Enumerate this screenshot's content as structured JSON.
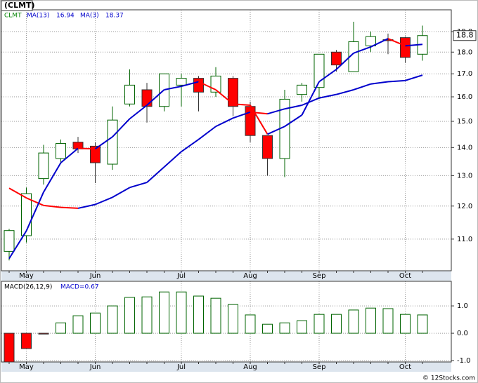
{
  "chart_data": [
    {
      "type": "candlestick",
      "title": "(CLMT)",
      "ticker": "CLMT",
      "log_scale": true,
      "grid": true,
      "categories": [
        null,
        "May",
        null,
        null,
        null,
        "Jun",
        null,
        null,
        null,
        null,
        "Jul",
        null,
        null,
        null,
        "Aug",
        null,
        null,
        null,
        "Sep",
        null,
        null,
        null,
        null,
        "Oct",
        null
      ],
      "open": [
        10.65,
        11.1,
        12.9,
        13.6,
        14.2,
        14.05,
        13.4,
        15.7,
        16.3,
        15.6,
        16.5,
        16.8,
        16.2,
        16.8,
        15.6,
        14.45,
        13.6,
        16.1,
        16.4,
        18.0,
        17.1,
        18.3,
        18.6,
        18.7,
        17.9
      ],
      "high": [
        11.3,
        12.6,
        14.1,
        14.3,
        14.4,
        14.2,
        15.6,
        17.2,
        16.6,
        17.0,
        17.0,
        16.9,
        17.3,
        16.9,
        15.8,
        14.45,
        16.3,
        16.6,
        17.9,
        18.1,
        19.5,
        19.0,
        18.9,
        18.75,
        19.3
      ],
      "low": [
        10.4,
        10.9,
        12.7,
        13.4,
        13.8,
        12.75,
        13.2,
        15.6,
        14.95,
        15.4,
        15.6,
        15.4,
        16.0,
        15.2,
        14.2,
        13.0,
        12.95,
        15.8,
        15.9,
        17.1,
        17.1,
        18.0,
        17.9,
        17.5,
        17.6
      ],
      "close": [
        11.25,
        12.4,
        13.8,
        14.15,
        13.95,
        13.45,
        15.05,
        16.5,
        15.6,
        17.0,
        16.8,
        16.2,
        16.9,
        15.6,
        14.45,
        13.6,
        15.9,
        16.5,
        17.9,
        17.4,
        18.5,
        18.75,
        18.55,
        17.75,
        18.8
      ],
      "up_color": "#006400",
      "down_color": "#ff0000",
      "ma_up_color": "#0000cc",
      "ma_down_color": "#ff0000",
      "series": [
        {
          "name": "MA(13)",
          "last": 16.94,
          "values": [
            12.58,
            12.26,
            12.02,
            11.96,
            11.93,
            12.05,
            12.28,
            12.6,
            12.77,
            13.3,
            13.85,
            14.3,
            14.8,
            15.13,
            15.37,
            15.3,
            15.5,
            15.65,
            15.95,
            16.1,
            16.3,
            16.55,
            16.65,
            16.7,
            16.94
          ]
        },
        {
          "name": "MA(3)",
          "last": 18.37,
          "values": [
            10.45,
            11.24,
            12.45,
            13.45,
            13.97,
            13.95,
            14.4,
            15.1,
            15.65,
            16.3,
            16.45,
            16.65,
            16.3,
            15.7,
            15.65,
            14.5,
            14.8,
            15.25,
            16.65,
            17.2,
            17.95,
            18.25,
            18.65,
            18.3,
            18.37
          ]
        }
      ],
      "ylim": [
        10.12,
        20.12
      ],
      "yticks": [
        {
          "value": 11,
          "label": "11.0"
        },
        {
          "value": 12,
          "label": "12.0"
        },
        {
          "value": 13,
          "label": "13.0"
        },
        {
          "value": 14,
          "label": "14.0"
        },
        {
          "value": 15,
          "label": "15.0"
        },
        {
          "value": 16,
          "label": "16.0"
        },
        {
          "value": 17,
          "label": "17.0"
        },
        {
          "value": 18,
          "label": "18.0"
        },
        {
          "value": 19,
          "label": "19.0"
        }
      ]
    },
    {
      "type": "bar",
      "name": "MACD(26,12,9)",
      "value_label": "MACD=0.67",
      "grid": true,
      "pos_color": "#006400",
      "neg_color": "#ff0000",
      "values": [
        -1.05,
        -0.56,
        -0.03,
        0.38,
        0.64,
        0.74,
        1.0,
        1.31,
        1.33,
        1.51,
        1.51,
        1.36,
        1.28,
        1.05,
        0.67,
        0.33,
        0.38,
        0.46,
        0.69,
        0.69,
        0.85,
        0.92,
        0.9,
        0.69,
        0.67
      ],
      "ylim": [
        -1.05,
        1.9
      ],
      "yticks": [
        {
          "value": -1,
          "label": "-1.0"
        },
        {
          "value": 0,
          "label": "0.0"
        },
        {
          "value": 1,
          "label": "1.0"
        }
      ]
    }
  ],
  "footer": "© 12Stocks.com"
}
